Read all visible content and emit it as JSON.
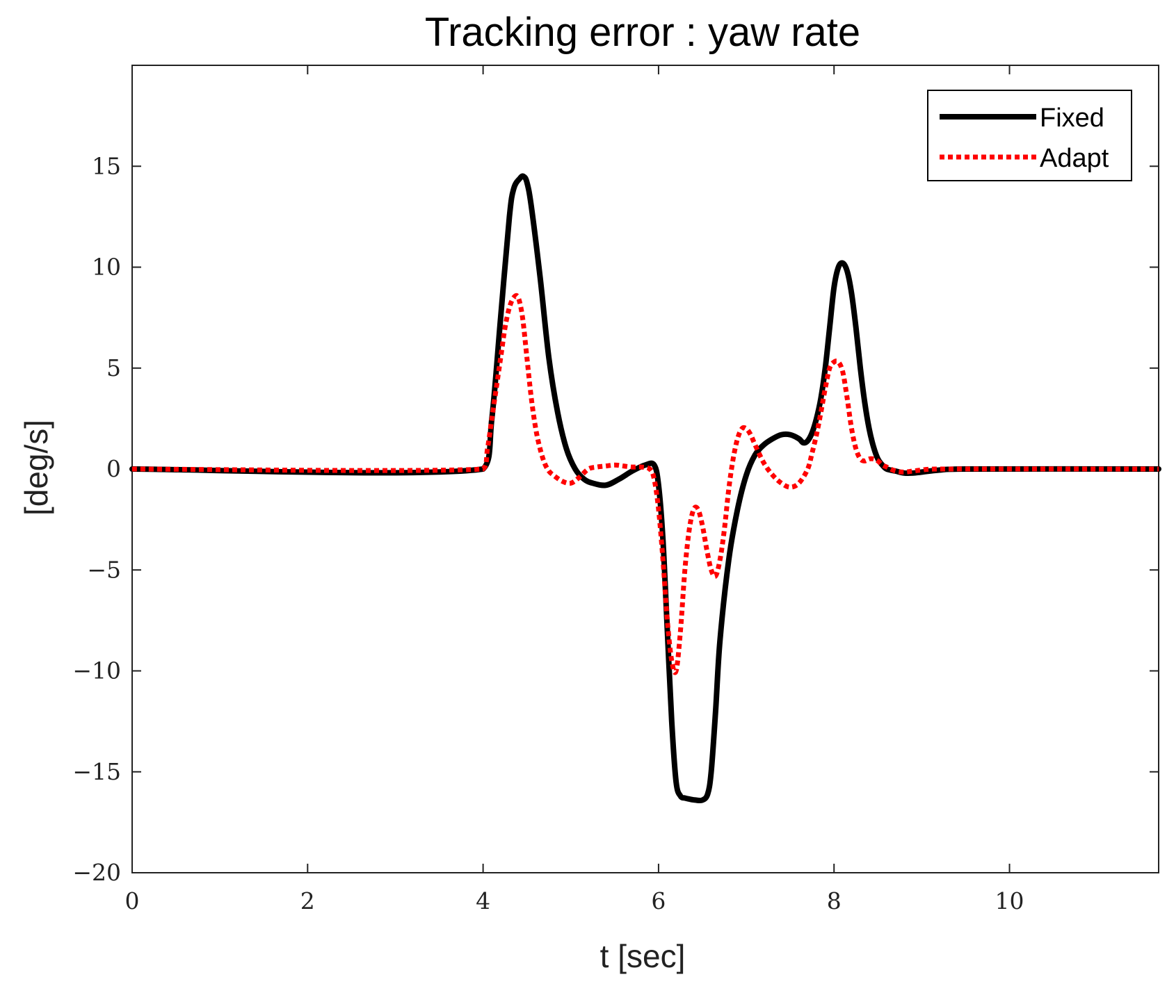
{
  "chart_data": {
    "type": "line",
    "title": "Tracking error : yaw rate",
    "xlabel": "t [sec]",
    "ylabel": "[deg/s]",
    "xlim": [
      0,
      11.7
    ],
    "ylim": [
      -20,
      20
    ],
    "xticks": [
      0,
      2,
      4,
      6,
      8,
      10
    ],
    "xtick_labels": [
      "0",
      "2",
      "4",
      "6",
      "8",
      "10"
    ],
    "yticks": [
      -20,
      -15,
      -10,
      -5,
      0,
      5,
      10,
      15
    ],
    "ytick_labels": [
      "−20",
      "−15",
      "−10",
      "−5",
      "0",
      "5",
      "10",
      "15"
    ],
    "grid": false,
    "legend_position": "top-right",
    "series": [
      {
        "name": "Fixed",
        "color": "#000000",
        "style": "solid",
        "x": [
          0,
          4.0,
          4.1,
          4.2,
          4.3,
          4.35,
          4.42,
          4.46,
          4.5,
          4.55,
          4.65,
          4.75,
          4.85,
          4.95,
          5.05,
          5.15,
          5.25,
          5.4,
          5.55,
          5.7,
          5.85,
          5.95,
          6.0,
          6.05,
          6.1,
          6.15,
          6.2,
          6.25,
          6.3,
          6.35,
          6.42,
          6.5,
          6.56,
          6.6,
          6.65,
          6.7,
          6.8,
          6.9,
          7.0,
          7.1,
          7.2,
          7.3,
          7.4,
          7.5,
          7.6,
          7.65,
          7.7,
          7.75,
          7.8,
          7.85,
          7.9,
          7.95,
          8.0,
          8.05,
          8.1,
          8.15,
          8.2,
          8.25,
          8.3,
          8.35,
          8.4,
          8.45,
          8.5,
          8.55,
          8.6,
          8.7,
          8.8,
          8.9,
          9.0,
          9.2,
          9.5,
          11.7
        ],
        "y": [
          0,
          0,
          2.5,
          7.5,
          12.5,
          13.9,
          14.4,
          14.5,
          14.2,
          13.0,
          9.5,
          5.5,
          2.8,
          1.0,
          0.0,
          -0.5,
          -0.7,
          -0.8,
          -0.5,
          -0.1,
          0.2,
          0.2,
          -0.8,
          -3.5,
          -8.0,
          -12.5,
          -15.5,
          -16.2,
          -16.3,
          -16.35,
          -16.4,
          -16.4,
          -16.1,
          -15.0,
          -12.0,
          -8.5,
          -4.5,
          -2.0,
          -0.3,
          0.7,
          1.2,
          1.5,
          1.7,
          1.7,
          1.5,
          1.3,
          1.4,
          1.8,
          2.5,
          3.5,
          5.0,
          7.0,
          9.0,
          10.0,
          10.2,
          9.8,
          8.7,
          7.0,
          5.0,
          3.3,
          2.0,
          1.1,
          0.5,
          0.2,
          0.0,
          -0.1,
          -0.2,
          -0.2,
          -0.15,
          -0.05,
          0,
          0
        ]
      },
      {
        "name": "Adapt",
        "color": "#ff0000",
        "style": "dotted",
        "x": [
          0,
          4.0,
          4.05,
          4.1,
          4.15,
          4.2,
          4.25,
          4.3,
          4.35,
          4.4,
          4.45,
          4.5,
          4.55,
          4.6,
          4.65,
          4.7,
          4.75,
          4.8,
          4.9,
          5.0,
          5.1,
          5.2,
          5.3,
          5.4,
          5.5,
          5.6,
          5.7,
          5.8,
          5.9,
          5.95,
          6.0,
          6.05,
          6.1,
          6.15,
          6.2,
          6.25,
          6.3,
          6.35,
          6.4,
          6.45,
          6.5,
          6.55,
          6.6,
          6.65,
          6.7,
          6.75,
          6.8,
          6.85,
          6.9,
          6.95,
          7.0,
          7.05,
          7.1,
          7.2,
          7.3,
          7.4,
          7.5,
          7.6,
          7.7,
          7.75,
          7.8,
          7.85,
          7.9,
          7.95,
          8.0,
          8.05,
          8.1,
          8.15,
          8.2,
          8.25,
          8.3,
          8.35,
          8.4,
          8.45,
          8.5,
          8.55,
          8.6,
          8.7,
          8.8,
          8.9,
          9.0,
          9.2,
          11.7
        ],
        "y": [
          0,
          0,
          1.0,
          2.5,
          4.0,
          5.5,
          7.0,
          8.0,
          8.5,
          8.5,
          7.5,
          5.5,
          3.5,
          2.0,
          1.0,
          0.3,
          -0.1,
          -0.3,
          -0.6,
          -0.7,
          -0.4,
          0.0,
          0.1,
          0.15,
          0.2,
          0.15,
          0.1,
          0.1,
          0.0,
          -0.5,
          -2.0,
          -4.5,
          -7.5,
          -9.5,
          -10.0,
          -8.0,
          -5.0,
          -3.0,
          -2.0,
          -2.0,
          -2.8,
          -4.0,
          -5.0,
          -5.3,
          -4.5,
          -3.0,
          -1.0,
          0.5,
          1.5,
          2.0,
          2.0,
          1.7,
          1.2,
          0.3,
          -0.3,
          -0.7,
          -0.9,
          -0.7,
          0.0,
          0.8,
          1.7,
          2.8,
          4.0,
          5.0,
          5.3,
          5.3,
          4.8,
          3.5,
          2.0,
          1.0,
          0.5,
          0.4,
          0.5,
          0.5,
          0.4,
          0.2,
          0.1,
          -0.1,
          -0.15,
          -0.1,
          -0.05,
          0,
          0
        ]
      }
    ]
  }
}
